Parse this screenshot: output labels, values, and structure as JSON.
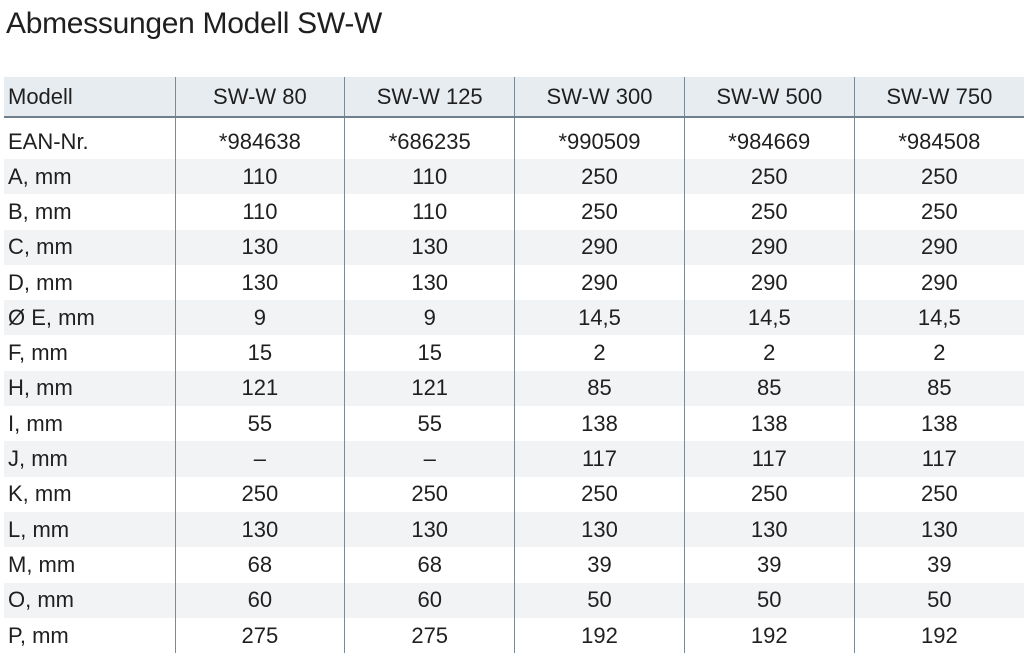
{
  "title": "Abmessungen Modell SW-W",
  "table": {
    "header": [
      "Modell",
      "SW-W 80",
      "SW-W 125",
      "SW-W 300",
      "SW-W 500",
      "SW-W 750"
    ],
    "rows": [
      [
        "EAN-Nr.",
        "*984638",
        "*686235",
        "*990509",
        "*984669",
        "*984508"
      ],
      [
        "A, mm",
        "110",
        "110",
        "250",
        "250",
        "250"
      ],
      [
        "B, mm",
        "110",
        "110",
        "250",
        "250",
        "250"
      ],
      [
        "C, mm",
        "130",
        "130",
        "290",
        "290",
        "290"
      ],
      [
        "D, mm",
        "130",
        "130",
        "290",
        "290",
        "290"
      ],
      [
        "Ø E, mm",
        "9",
        "9",
        "14,5",
        "14,5",
        "14,5"
      ],
      [
        "F, mm",
        "15",
        "15",
        "2",
        "2",
        "2"
      ],
      [
        "H, mm",
        "121",
        "121",
        "85",
        "85",
        "85"
      ],
      [
        "I, mm",
        "55",
        "55",
        "138",
        "138",
        "138"
      ],
      [
        "J, mm",
        "–",
        "–",
        "117",
        "117",
        "117"
      ],
      [
        "K, mm",
        "250",
        "250",
        "250",
        "250",
        "250"
      ],
      [
        "L, mm",
        "130",
        "130",
        "130",
        "130",
        "130"
      ],
      [
        "M, mm",
        "68",
        "68",
        "39",
        "39",
        "39"
      ],
      [
        "O, mm",
        "60",
        "60",
        "50",
        "50",
        "50"
      ],
      [
        "P, mm",
        "275",
        "275",
        "192",
        "192",
        "192"
      ]
    ]
  },
  "colors": {
    "header_bg": "#e7ecf0",
    "stripe_bg": "#f1f3f5",
    "rule": "#6f7f8c",
    "text": "#1f1f1f"
  }
}
